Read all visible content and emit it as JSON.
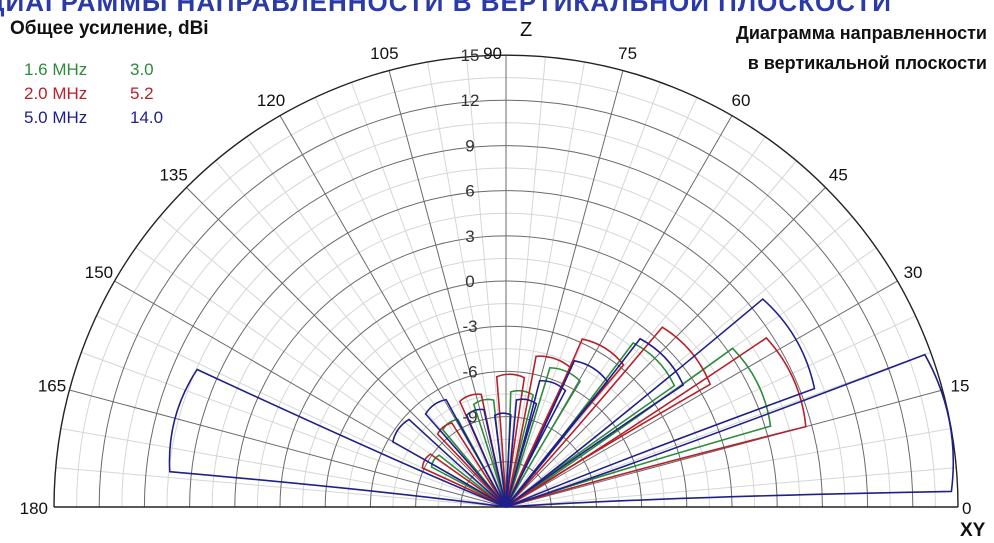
{
  "banner_text": "ДИАГРАММЫ НАПРАВЛЕННОСТИ В ВЕРТИКАЛЬНОЙ ПЛОСКОСТИ",
  "gain_title": "Общее усиление, dBi",
  "diagram_title": {
    "line1": "Диаграмма направленности",
    "line2": "в вертикальной плоскости"
  },
  "legend": [
    {
      "freq": "1.6 MHz",
      "gain": "3.0",
      "color": "#2e8b3c"
    },
    {
      "freq": "2.0 MHz",
      "gain": "5.2",
      "color": "#b8202a"
    },
    {
      "freq": "5.0 MHz",
      "gain": "14.0",
      "color": "#20208a"
    }
  ],
  "axis_labels": {
    "z": "Z",
    "xy": "XY"
  },
  "chart_data": {
    "type": "polar-halfplane",
    "r_unit": "dBi",
    "r_ticks": [
      "-9",
      "-6",
      "-3",
      "0",
      "3",
      "6",
      "9",
      "12",
      "15"
    ],
    "angle_labels": [
      "0",
      "15",
      "30",
      "45",
      "60",
      "75",
      "90",
      "105",
      "120",
      "135",
      "150",
      "165",
      "180"
    ],
    "r_range": [
      -15,
      15
    ],
    "series": [
      {
        "name": "1.6 MHz",
        "color": "#2e8b3c",
        "peak_gain": 3.0,
        "lobes": [
          {
            "angle_deg": 26,
            "gain_dbi": 3.0
          },
          {
            "angle_deg": 44,
            "gain_dbi": -1.5
          },
          {
            "angle_deg": 66,
            "gain_dbi": -5.5
          },
          {
            "angle_deg": 82,
            "gain_dbi": -7.5
          },
          {
            "angle_deg": 102,
            "gain_dbi": -8.0
          },
          {
            "angle_deg": 124,
            "gain_dbi": -8.5
          },
          {
            "angle_deg": 147,
            "gain_dbi": -9.5
          }
        ]
      },
      {
        "name": "2.0 MHz",
        "color": "#b8202a",
        "peak_gain": 5.2,
        "lobes": [
          {
            "angle_deg": 24,
            "gain_dbi": 5.2
          },
          {
            "angle_deg": 40,
            "gain_dbi": 0.5
          },
          {
            "angle_deg": 58,
            "gain_dbi": -3.0
          },
          {
            "angle_deg": 72,
            "gain_dbi": -5.0
          },
          {
            "angle_deg": 88,
            "gain_dbi": -6.5
          },
          {
            "angle_deg": 108,
            "gain_dbi": -7.5
          },
          {
            "angle_deg": 128,
            "gain_dbi": -8.5
          },
          {
            "angle_deg": 150,
            "gain_dbi": -9.0
          }
        ]
      },
      {
        "name": "5.0 MHz",
        "color": "#20208a",
        "peak_gain": 14.0,
        "lobes": [
          {
            "angle_deg": 11,
            "gain_dbi": 14.0
          },
          {
            "angle_deg": 30,
            "gain_dbi": 6.5
          },
          {
            "angle_deg": 43,
            "gain_dbi": -1.0
          },
          {
            "angle_deg": 58,
            "gain_dbi": -4.5
          },
          {
            "angle_deg": 69,
            "gain_dbi": -6.5
          },
          {
            "angle_deg": 79,
            "gain_dbi": -8.0
          },
          {
            "angle_deg": 92,
            "gain_dbi": -9.0
          },
          {
            "angle_deg": 108,
            "gain_dbi": -8.5
          },
          {
            "angle_deg": 125,
            "gain_dbi": -7.0
          },
          {
            "angle_deg": 144,
            "gain_dbi": -6.5
          },
          {
            "angle_deg": 165,
            "gain_dbi": 7.0
          }
        ]
      }
    ]
  }
}
